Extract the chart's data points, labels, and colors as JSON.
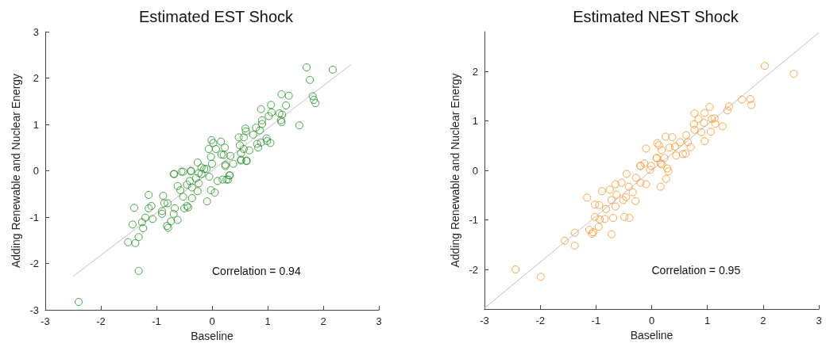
{
  "chart_data": [
    {
      "type": "scatter",
      "title": "Estimated EST Shock",
      "xlabel": "Baseline",
      "ylabel": "Adding Renewable and Nuclear Energy",
      "xlim": [
        -3,
        3
      ],
      "xticks": [
        -3,
        -2,
        -1,
        0,
        1,
        2,
        3
      ],
      "ylim": [
        -3,
        3
      ],
      "yticks": [
        -3,
        -2,
        -1,
        0,
        1,
        2,
        3
      ],
      "grid": false,
      "annotations": [
        "Correlation = 0.94"
      ],
      "series": [
        {
          "marker": "circle",
          "color": "#1a8c1a",
          "x": [
            -2.4,
            -1.32,
            -1.51,
            -1.38,
            -1.32,
            -1.43,
            -1.24,
            -1.26,
            -1.2,
            -1.07,
            -1.4,
            -1.14,
            -1.14,
            -1.09,
            -0.9,
            -0.9,
            -0.88,
            -0.81,
            -0.79,
            -0.74,
            -0.69,
            -0.62,
            -0.67,
            -0.8,
            -0.86,
            -0.68,
            -0.55,
            -0.38,
            -0.52,
            -0.45,
            -0.5,
            -0.43,
            -0.36,
            -0.09,
            -0.62,
            -0.57,
            -0.45,
            -0.36,
            -0.26,
            -0.24,
            -0.19,
            -0.14,
            -0.05,
            -0.02,
            0.05,
            0.1,
            0.19,
            0.29,
            0.32,
            0.0,
            -0.26,
            0.24,
            0.38,
            0.52,
            0.62,
            -0.24,
            -0.4,
            -0.29,
            1.7,
            2.17,
            1.76,
            1.25,
            1.38,
            1.81,
            1.83,
            1.86,
            1.33,
            1.06,
            0.88,
            1.07,
            1.21,
            1.26,
            1.02,
            1.24,
            1.25,
            0.9,
            0.9,
            1.57,
            0.79,
            0.6,
            0.61,
            0.86,
            0.74,
            0.48,
            0.57,
            0.98,
            0.99,
            1.05,
            0.88,
            0.81,
            0.83,
            0.67,
            0.5,
            -0.01,
            0.02,
            0.16,
            -0.06,
            0.07,
            0.23,
            0.17,
            0.21,
            0.33,
            0.52,
            0.57,
            -0.02,
            0.52,
            0.62,
            0.24,
            -0.19,
            -0.1,
            -0.38,
            -0.52,
            -0.69,
            0.31,
            0.26
          ],
          "values": [
            -2.83,
            -2.16,
            -1.54,
            -1.56,
            -1.43,
            -1.16,
            -1.24,
            -1.11,
            -1.01,
            -1.04,
            -0.8,
            -0.52,
            -0.81,
            -0.76,
            -0.87,
            -0.93,
            -0.54,
            -1.19,
            -1.23,
            -1.09,
            -0.93,
            -1.06,
            -0.81,
            -0.7,
            -0.7,
            -0.07,
            -0.02,
            -0.01,
            -0.56,
            -0.76,
            -0.81,
            -0.79,
            -0.59,
            -0.66,
            -0.33,
            -0.42,
            -0.3,
            -0.36,
            -0.44,
            -0.27,
            -0.07,
            0.04,
            -0.13,
            -0.42,
            -0.47,
            -0.22,
            -0.19,
            -0.19,
            -0.1,
            0.15,
            0.18,
            0.1,
            0.15,
            0.22,
            0.22,
            -0.05,
            -0.22,
            -0.16,
            2.23,
            2.18,
            1.96,
            1.65,
            1.62,
            1.61,
            1.53,
            1.46,
            1.41,
            1.42,
            1.33,
            1.26,
            1.24,
            1.21,
            1.18,
            1.09,
            1.05,
            1.09,
            1.01,
            0.98,
            0.93,
            0.91,
            0.85,
            0.87,
            0.78,
            0.72,
            0.72,
            0.7,
            0.64,
            0.6,
            0.61,
            0.58,
            0.5,
            0.44,
            0.55,
            0.66,
            0.6,
            0.63,
            0.47,
            0.47,
            0.5,
            0.35,
            0.34,
            0.32,
            0.38,
            0.47,
            0.3,
            0.24,
            0.21,
            0.13,
            0.07,
            0.04,
            0.0,
            -0.02,
            -0.07,
            -0.1,
            -0.19
          ]
        },
        {
          "type": "line",
          "marker": "none",
          "color": "#c0c0c0",
          "x": [
            -2.5,
            2.5
          ],
          "values": [
            -2.28,
            2.29
          ]
        }
      ]
    },
    {
      "type": "scatter",
      "title": "Estimated NEST Shock",
      "xlabel": "Baseline",
      "ylabel": "Adding Renewable and Nuclear Energy",
      "xlim": [
        -3,
        3
      ],
      "xticks": [
        -3,
        -2,
        -1,
        0,
        1,
        2,
        3
      ],
      "ylim": [
        -2.8,
        2.8
      ],
      "yticks": [
        -2,
        -1,
        0,
        1,
        2
      ],
      "grid": false,
      "annotations": [
        "Correlation = 0.95"
      ],
      "series": [
        {
          "marker": "circle",
          "color": "#ff8c1a",
          "x": [
            -2.44,
            -1.99,
            -1.56,
            -1.38,
            -1.38,
            -1.12,
            -1.07,
            -1.05,
            -0.95,
            -1.02,
            -0.93,
            -0.84,
            -0.72,
            -0.69,
            -0.49,
            -0.4,
            -1.16,
            -1.02,
            -0.94,
            -0.89,
            -0.82,
            -0.75,
            -0.72,
            -0.65,
            -0.63,
            -0.65,
            -0.54,
            -0.51,
            -0.46,
            -0.45,
            -0.29,
            -0.28,
            -0.2,
            -0.1,
            -0.2,
            -0.13,
            -0.03,
            0.16,
            0.26,
            0.3,
            0.18,
            0.09,
            -0.34,
            -0.41,
            2.03,
            2.55,
            1.62,
            1.77,
            1.79,
            1.39,
            1.36,
            1.04,
            0.95,
            0.77,
            0.84,
            1.08,
            1.13,
            1.14,
            1.27,
            0.94,
            0.76,
            0.77,
            0.89,
            1.06,
            0.95,
            -0.1,
            0.1,
            0.13,
            0.25,
            0.37,
            0.51,
            0.62,
            0.65,
            0.7,
            0.56,
            0.61,
            0.44,
            0.18,
            0.23,
            0.32,
            0.09,
            0.16,
            -0.01,
            -0.2,
            0.28,
            0.42
          ],
          "values": [
            -2.0,
            -2.15,
            -1.42,
            -1.26,
            -1.52,
            -1.2,
            -1.28,
            -1.25,
            -1.14,
            -0.94,
            -0.99,
            -0.98,
            -1.29,
            -0.96,
            -0.94,
            -0.96,
            -0.55,
            -0.69,
            -0.7,
            -0.42,
            -0.78,
            -0.39,
            -0.6,
            -0.73,
            -0.49,
            -0.28,
            -0.25,
            -0.6,
            -0.54,
            -0.07,
            -0.62,
            -0.15,
            -0.25,
            -0.28,
            0.09,
            0.14,
            0.01,
            -0.33,
            -0.17,
            -0.02,
            0.12,
            0.25,
            -0.44,
            -0.33,
            2.11,
            1.95,
            1.43,
            1.44,
            1.32,
            1.29,
            1.21,
            1.28,
            1.16,
            1.15,
            1.04,
            1.04,
            1.05,
            0.94,
            0.89,
            0.96,
            0.93,
            0.82,
            0.77,
            0.78,
            0.59,
            0.44,
            0.55,
            0.51,
            0.68,
            0.67,
            0.57,
            0.71,
            0.57,
            0.47,
            0.33,
            0.34,
            0.3,
            0.41,
            0.25,
            0.46,
            0.25,
            0.14,
            0.09,
            0.09,
            0.04,
            0.48
          ]
        },
        {
          "type": "line",
          "marker": "none",
          "color": "#c0c0c0",
          "x": [
            -3,
            3
          ],
          "values": [
            -2.78,
            2.78
          ]
        }
      ]
    }
  ]
}
